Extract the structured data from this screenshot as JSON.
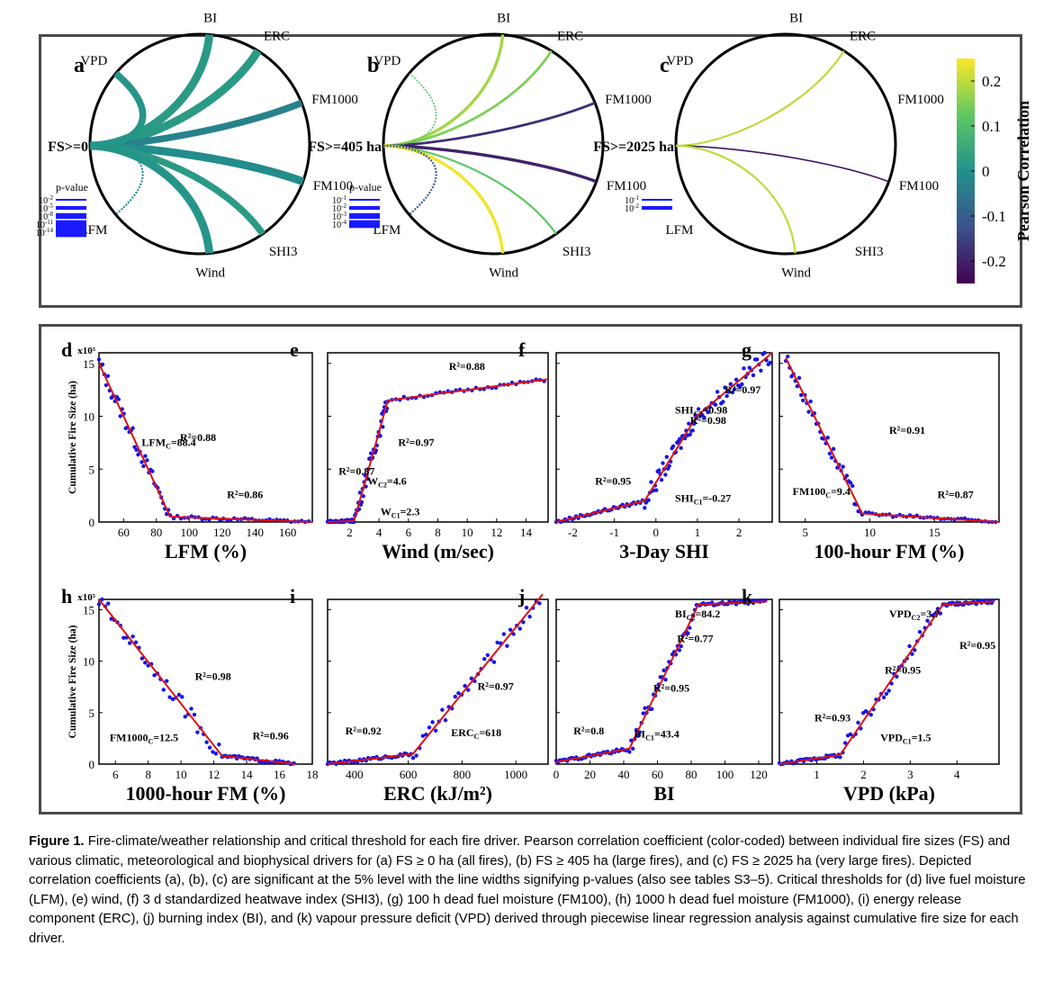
{
  "chord_panels": [
    {
      "letter": "a",
      "cx": 222,
      "cy": 160,
      "r": 122,
      "threshold_label": "FS>=0",
      "nodes": {
        "BI": [
          85,
          "BI"
        ],
        "ERC": [
          58,
          "ERC"
        ],
        "FM1000": [
          22,
          "FM1000"
        ],
        "FM100": [
          -20,
          "FM100"
        ],
        "SHI3": [
          -55,
          "SHI3"
        ],
        "Wind": [
          -85,
          "Wind"
        ],
        "LFM": [
          -140,
          "LFM"
        ],
        "VPD": [
          140,
          "VPD"
        ]
      },
      "links": [
        {
          "to": "BI",
          "r": 0.02,
          "p": -14
        },
        {
          "to": "ERC",
          "r": 0.02,
          "p": -14
        },
        {
          "to": "FM1000",
          "r": -0.03,
          "p": -11
        },
        {
          "to": "FM100",
          "r": -0.01,
          "p": -14
        },
        {
          "to": "SHI3",
          "r": 0.02,
          "p": -11
        },
        {
          "to": "Wind",
          "r": 0.01,
          "p": -14
        },
        {
          "to": "VPD",
          "r": 0.01,
          "p": -11
        },
        {
          "to": "LFM",
          "r": 0.0,
          "p": -2
        }
      ],
      "legend": {
        "title": "p-value",
        "labels": [
          "10-2",
          "10-5",
          "10-8",
          "10-11",
          "10-14"
        ]
      }
    },
    {
      "letter": "b",
      "cx": 548,
      "cy": 160,
      "r": 122,
      "threshold_label": "FS>=405 ha",
      "nodes": {
        "BI": [
          85,
          "BI"
        ],
        "ERC": [
          58,
          "ERC"
        ],
        "FM1000": [
          22,
          "FM1000"
        ],
        "FM100": [
          -20,
          "FM100"
        ],
        "SHI3": [
          -55,
          "SHI3"
        ],
        "Wind": [
          -85,
          "Wind"
        ],
        "LFM": [
          -140,
          "LFM"
        ],
        "VPD": [
          140,
          "VPD"
        ]
      },
      "links": [
        {
          "to": "BI",
          "r": 0.18,
          "p": -4
        },
        {
          "to": "ERC",
          "r": 0.15,
          "p": -3
        },
        {
          "to": "FM1000",
          "r": -0.18,
          "p": -3
        },
        {
          "to": "FM100",
          "r": -0.2,
          "p": -4
        },
        {
          "to": "SHI3",
          "r": 0.12,
          "p": -2
        },
        {
          "to": "Wind",
          "r": 0.24,
          "p": -4
        },
        {
          "to": "VPD",
          "r": 0.1,
          "p": -1
        },
        {
          "to": "LFM",
          "r": -0.1,
          "p": -2
        }
      ],
      "legend": {
        "title": "p-value",
        "labels": [
          "10-1",
          "10-2",
          "10-3",
          "10-4"
        ]
      }
    },
    {
      "letter": "c",
      "cx": 873,
      "cy": 160,
      "r": 122,
      "threshold_label": "FS>=2025 ha",
      "nodes": {
        "BI": [
          85,
          "BI"
        ],
        "ERC": [
          58,
          "ERC"
        ],
        "FM1000": [
          22,
          "FM1000"
        ],
        "FM100": [
          -20,
          "FM100"
        ],
        "SHI3": [
          -55,
          "SHI3"
        ],
        "Wind": [
          -85,
          "Wind"
        ],
        "LFM": [
          -140,
          "LFM"
        ],
        "VPD": [
          140,
          "VPD"
        ]
      },
      "links": [
        {
          "to": "ERC",
          "r": 0.2,
          "p": -2
        },
        {
          "to": "FM100",
          "r": -0.22,
          "p": -1
        },
        {
          "to": "Wind",
          "r": 0.2,
          "p": -2
        }
      ],
      "legend": {
        "title": "",
        "labels": [
          "10-1",
          "10-2"
        ]
      }
    }
  ],
  "colorbar": {
    "label": "Pearson Correlation",
    "ticks": [
      0.2,
      0.1,
      0,
      -0.1,
      -0.2
    ],
    "range": [
      -0.25,
      0.25
    ]
  },
  "threshold_plots": [
    {
      "letter": "d",
      "xlabel": "LFM (%)",
      "xlim": [
        45,
        175
      ],
      "xticks": [
        60,
        80,
        100,
        120,
        140,
        160
      ],
      "ylim": [
        0,
        16
      ],
      "scale": "x10⁵",
      "segments": [
        [
          45,
          15
        ],
        [
          88.4,
          0.5
        ],
        [
          175,
          0
        ]
      ],
      "break_labels": [
        {
          "text": "LFM",
          "sub": "C",
          "val": "=88.4"
        }
      ],
      "r2": [
        "R²=0.88",
        "R²=0.86"
      ],
      "shape": "decreasing"
    },
    {
      "letter": "e",
      "xlabel": "Wind (m/sec)",
      "xlim": [
        0.5,
        15.5
      ],
      "xticks": [
        2,
        4,
        6,
        8,
        10,
        12,
        14
      ],
      "ylim": [
        0,
        16
      ],
      "segments": [
        [
          0.5,
          0
        ],
        [
          2.3,
          0.1
        ],
        [
          4.6,
          11.5
        ],
        [
          15.5,
          13.5
        ]
      ],
      "break_labels": [
        {
          "text": "W",
          "sub": "C2",
          "val": "=4.6"
        },
        {
          "text": "W",
          "sub": "C1",
          "val": "=2.3"
        }
      ],
      "r2": [
        "R²=0.87",
        "R²=0.97",
        "R²=0.88"
      ]
    },
    {
      "letter": "f",
      "xlabel": "3-Day SHI",
      "xlim": [
        -2.4,
        2.8
      ],
      "xticks": [
        -2,
        -1,
        0,
        1,
        2
      ],
      "ylim": [
        0,
        16
      ],
      "segments": [
        [
          -2.4,
          0
        ],
        [
          -0.27,
          2
        ],
        [
          0.98,
          10
        ],
        [
          2.8,
          16
        ]
      ],
      "break_labels": [
        {
          "text": "SHI",
          "sub": "C2",
          "val": "=0.98"
        },
        {
          "text": "SHI",
          "sub": "C1",
          "val": "=-0.27"
        }
      ],
      "r2": [
        "R²=0.95",
        "R²=0.98",
        "R²=0.97"
      ]
    },
    {
      "letter": "g",
      "xlabel": "100-hour FM (%)",
      "xlim": [
        3,
        20
      ],
      "xticks": [
        5,
        10,
        15
      ],
      "ylim": [
        0,
        16
      ],
      "segments": [
        [
          3.5,
          15.5
        ],
        [
          9.4,
          0.8
        ],
        [
          20,
          0
        ]
      ],
      "break_labels": [
        {
          "text": "FM100",
          "sub": "C",
          "val": "=9.4"
        }
      ],
      "r2": [
        "R²=0.91",
        "R²=0.87"
      ]
    },
    {
      "letter": "h",
      "xlabel": "1000-hour FM (%)",
      "xlim": [
        5,
        18
      ],
      "xticks": [
        6,
        8,
        10,
        12,
        14,
        16,
        18
      ],
      "ylim": [
        0,
        16
      ],
      "scale": "x10⁵",
      "segments": [
        [
          5,
          16
        ],
        [
          12.5,
          0.8
        ],
        [
          17,
          0
        ]
      ],
      "break_labels": [
        {
          "text": "FM1000",
          "sub": "C",
          "val": "=12.5"
        }
      ],
      "r2": [
        "R²=0.98",
        "R²=0.96"
      ]
    },
    {
      "letter": "i",
      "xlabel": "ERC (kJ/m²)",
      "xlim": [
        300,
        1120
      ],
      "xticks": [
        400,
        600,
        800,
        1000
      ],
      "ylim": [
        0,
        16
      ],
      "segments": [
        [
          300,
          0
        ],
        [
          618,
          1
        ],
        [
          1100,
          16.5
        ]
      ],
      "break_labels": [
        {
          "text": "ERC",
          "sub": "C",
          "val": "=618"
        }
      ],
      "r2": [
        "R²=0.92",
        "R²=0.97"
      ]
    },
    {
      "letter": "j",
      "xlabel": "BI",
      "xlim": [
        0,
        128
      ],
      "xticks": [
        0,
        20,
        40,
        60,
        80,
        100,
        120
      ],
      "ylim": [
        0,
        16
      ],
      "segments": [
        [
          0,
          0.2
        ],
        [
          43.4,
          1.5
        ],
        [
          84.2,
          15.5
        ],
        [
          125,
          15.8
        ]
      ],
      "break_labels": [
        {
          "text": "BI",
          "sub": "C2",
          "val": "=84.2"
        },
        {
          "text": "BI",
          "sub": "C1",
          "val": "=43.4"
        }
      ],
      "r2": [
        "R²=0.8",
        "R²=0.95",
        "R²=0.77"
      ]
    },
    {
      "letter": "k",
      "xlabel": "VPD (kPa)",
      "xlim": [
        0.2,
        4.9
      ],
      "xticks": [
        1,
        2,
        3,
        4
      ],
      "ylim": [
        0,
        16
      ],
      "segments": [
        [
          0.2,
          0
        ],
        [
          1.5,
          0.9
        ],
        [
          3.7,
          15.5
        ],
        [
          4.8,
          15.8
        ]
      ],
      "break_labels": [
        {
          "text": "VPD",
          "sub": "C2",
          "val": "=3.7"
        },
        {
          "text": "VPD",
          "sub": "C1",
          "val": "=1.5"
        }
      ],
      "r2": [
        "R²=0.93",
        "R²=0.95",
        "R²=0.95"
      ]
    }
  ],
  "ylabel": "Cumulative Fire Size (ha)",
  "y_ticks": [
    0,
    5,
    10,
    15
  ],
  "caption": {
    "bold": "Figure 1.",
    "text": " Fire-climate/weather relationship and critical threshold for each fire driver. Pearson correlation coefficient (color-coded) between individual fire sizes (FS) and various climatic, meteorological and biophysical drivers for (a) FS ≥ 0 ha (all fires), (b) FS ≥ 405 ha (large fires), and (c) FS ≥ 2025 ha (very large fires). Depicted correlation coefficients (a), (b), (c) are significant at the 5% level with the line widths signifying p-values (also see tables S3–5). Critical thresholds for (d) live fuel moisture (LFM), (e) wind, (f) 3 d standardized heatwave index (SHI3), (g) 100 h dead fuel moisture (FM100), (h) 1000 h dead fuel moisture (FM1000), (i) energy release component (ERC), (j) burning index (BI), and (k) vapour pressure deficit (VPD) derived through piecewise linear regression analysis against cumulative fire size for each driver."
  }
}
